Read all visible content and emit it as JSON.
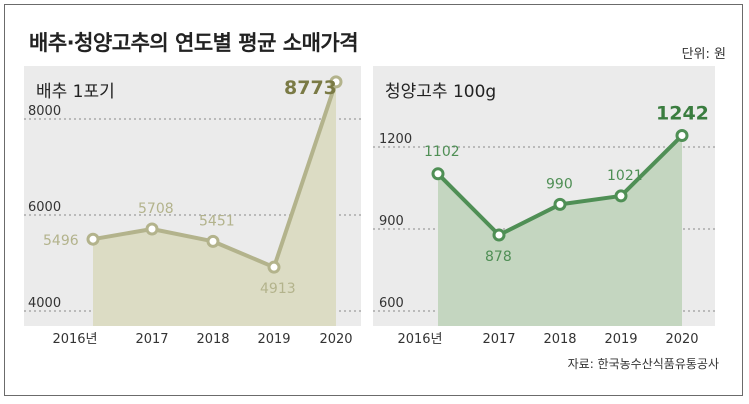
{
  "title": "배추·청양고추의 연도별 평균 소매가격",
  "unit_note": "단위: 원",
  "source": "자료: 한국농수산식품유통공사",
  "colors": {
    "left_line": "#b3b38c",
    "left_fill": "#dcdcc4",
    "left_accent": "#7a7a45",
    "right_line": "#4f8f55",
    "right_fill": "#c4d6c0",
    "right_accent": "#3a7d3f"
  },
  "chart_data": [
    {
      "type": "area",
      "title": "배추 1포기",
      "categories": [
        "2016년",
        "2017",
        "2018",
        "2019",
        "2020"
      ],
      "values": [
        5496,
        5708,
        5451,
        4913,
        8773
      ],
      "data_labels": [
        "5496",
        "5708",
        "5451",
        "4913",
        "8773"
      ],
      "yticks": [
        "4000",
        "6000",
        "8000"
      ],
      "ytick_values": [
        4000,
        6000,
        8000
      ],
      "ylim": [
        4000,
        9000
      ],
      "grid": "dotted"
    },
    {
      "type": "area",
      "title": "청양고추 100g",
      "categories": [
        "2016년",
        "2017",
        "2018",
        "2019",
        "2020"
      ],
      "values": [
        1102,
        878,
        990,
        1021,
        1242
      ],
      "data_labels": [
        "1102",
        "878",
        "990",
        "1021",
        "1242"
      ],
      "yticks": [
        "600",
        "900",
        "1200"
      ],
      "ytick_values": [
        600,
        900,
        1200
      ],
      "ylim": [
        600,
        1300
      ],
      "grid": "dotted"
    }
  ]
}
